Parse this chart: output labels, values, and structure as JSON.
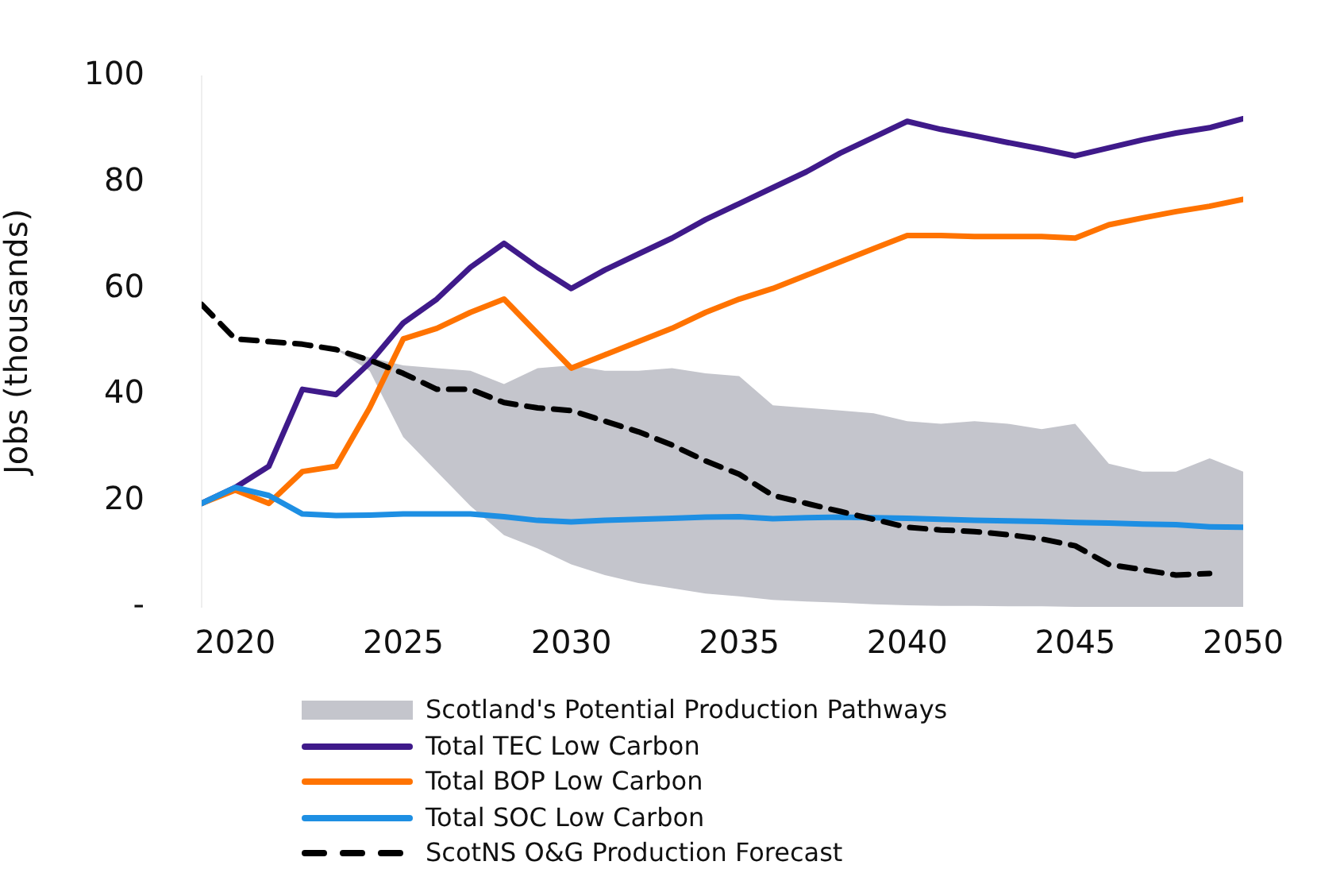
{
  "chart_data": {
    "type": "line",
    "ylabel": "Jobs (thousands)",
    "x": [
      2019,
      2020,
      2021,
      2022,
      2023,
      2024,
      2025,
      2026,
      2027,
      2028,
      2029,
      2030,
      2031,
      2032,
      2033,
      2034,
      2035,
      2036,
      2037,
      2038,
      2039,
      2040,
      2041,
      2042,
      2043,
      2044,
      2045,
      2046,
      2047,
      2048,
      2049,
      2050
    ],
    "xlim": [
      2019,
      2050
    ],
    "xticks": [
      2020,
      2025,
      2030,
      2035,
      2040,
      2045,
      2050
    ],
    "ylim": [
      0,
      100
    ],
    "yticks": [
      {
        "value": 0,
        "label": "-"
      },
      20,
      40,
      60,
      80,
      100
    ],
    "legend": "bottom",
    "series": [
      {
        "name": "Scotland's Potential Production Pathways",
        "color": "#c4c5cc",
        "values": [
          null,
          null,
          null,
          null,
          null,
          null,
          null,
          null,
          null,
          null,
          null,
          null,
          null,
          null,
          null,
          null,
          null,
          null,
          null,
          null,
          null,
          null,
          null,
          null,
          null,
          null,
          null,
          null,
          null,
          null,
          null,
          null
        ],
        "lower": [
          57,
          50.5,
          52,
          51,
          48.5,
          44.5,
          32,
          25.5,
          19,
          13.5,
          11,
          8,
          6,
          4.5,
          3.5,
          2.5,
          2,
          1.3,
          1,
          0.8,
          0.5,
          0.3,
          0.2,
          0.2,
          0.1,
          0.1,
          0,
          0,
          0,
          0,
          0,
          0
        ],
        "upper": [
          57,
          50.5,
          52,
          51,
          48.5,
          47,
          45.5,
          45,
          44.5,
          42,
          45,
          45.5,
          44.5,
          44.5,
          45,
          44,
          43.5,
          38,
          37.5,
          37,
          36.5,
          35,
          34.5,
          35,
          34.5,
          33.5,
          34.5,
          27,
          25.5,
          25.5,
          28,
          25.5
        ]
      },
      {
        "name": "Total TEC Low Carbon",
        "color": "#3f1a8a",
        "values": [
          19.5,
          22.5,
          26.5,
          41,
          40,
          46,
          53.5,
          58,
          64,
          68.5,
          64,
          60,
          63.5,
          66.5,
          69.5,
          73,
          76,
          79,
          82,
          85.5,
          88.5,
          91.5,
          90,
          88.8,
          87.5,
          86.3,
          85,
          86.5,
          88,
          89.3,
          90.3,
          92
        ]
      },
      {
        "name": "Total BOP Low Carbon",
        "color": "#ff7300",
        "values": [
          19.5,
          22,
          19.5,
          25.5,
          26.5,
          37.5,
          50.5,
          52.5,
          55.5,
          58,
          51.5,
          45,
          47.5,
          50,
          52.5,
          55.5,
          58,
          60,
          62.5,
          65,
          67.5,
          70,
          70,
          69.8,
          69.8,
          69.8,
          69.5,
          72,
          73.3,
          74.5,
          75.5,
          76.8
        ]
      },
      {
        "name": "Total SOC Low Carbon",
        "color": "#1e8fe3",
        "values": [
          19.5,
          22.5,
          21,
          17.5,
          17.2,
          17.3,
          17.5,
          17.5,
          17.5,
          17,
          16.3,
          16,
          16.3,
          16.5,
          16.7,
          16.9,
          17,
          16.6,
          16.8,
          16.9,
          16.8,
          16.7,
          16.5,
          16.3,
          16.2,
          16.1,
          15.9,
          15.8,
          15.6,
          15.5,
          15.1,
          15
        ]
      },
      {
        "name": "ScotNS O&G Production Forecast",
        "color": "#000000",
        "line_style": "dashed",
        "values": [
          57,
          50.5,
          50,
          49.5,
          48.5,
          46.5,
          44,
          41,
          41,
          38.5,
          37.5,
          37,
          35,
          33,
          30.5,
          27.5,
          25,
          21,
          19.5,
          18,
          16.5,
          15,
          14.5,
          14.2,
          13.6,
          12.8,
          11.5,
          8,
          7,
          6,
          6.3,
          null
        ]
      }
    ]
  }
}
